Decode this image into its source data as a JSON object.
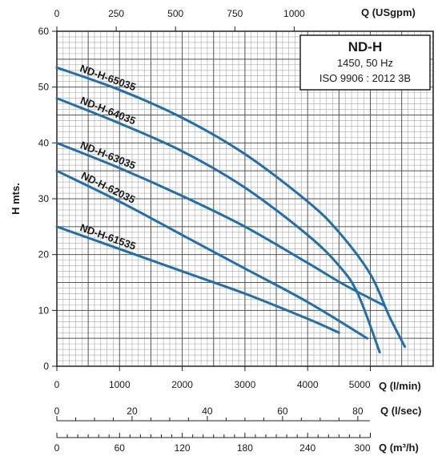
{
  "chart_data": {
    "type": "line",
    "title": "ND-H",
    "legend_box": {
      "title": "ND-H",
      "line1": "1450, 50 Hz",
      "line2": "ISO 9906 : 2012 3B"
    },
    "ylabel": "H mts.",
    "ylim": [
      0,
      60
    ],
    "y_ticks": [
      0,
      10,
      20,
      30,
      40,
      50,
      60
    ],
    "xlim": [
      0,
      5400
    ],
    "x_axis": {
      "unit": "Q (l/min)",
      "ticks": [
        0,
        1000,
        2000,
        3000,
        4000,
        5000
      ]
    },
    "top_axis": {
      "unit": "Q (USgpm)",
      "ticks": [
        0,
        250,
        500,
        750,
        1000
      ]
    },
    "extra_axes": [
      {
        "unit": "Q (l/sec)",
        "ticks": [
          0,
          20,
          40,
          60,
          80
        ]
      },
      {
        "unit": "Q (m³/h)",
        "ticks": [
          0,
          60,
          120,
          180,
          240,
          300
        ]
      }
    ],
    "grid": true,
    "series": [
      {
        "name": "ND-H-65035",
        "color": "#1f6fad",
        "points": [
          [
            0,
            53.5
          ],
          [
            1000,
            49.5
          ],
          [
            2000,
            44.5
          ],
          [
            3000,
            38.0
          ],
          [
            4000,
            29.5
          ],
          [
            4500,
            24.0
          ],
          [
            5000,
            16.5
          ],
          [
            5300,
            9.0
          ],
          [
            5550,
            3.5
          ]
        ]
      },
      {
        "name": "ND-H-64035",
        "color": "#1f6fad",
        "points": [
          [
            0,
            48.0
          ],
          [
            1000,
            43.5
          ],
          [
            2000,
            38.5
          ],
          [
            3000,
            32.0
          ],
          [
            4000,
            23.5
          ],
          [
            4500,
            18.0
          ],
          [
            4800,
            13.0
          ],
          [
            5150,
            2.5
          ]
        ]
      },
      {
        "name": "ND-H-63035",
        "color": "#1f6fad",
        "points": [
          [
            0,
            40.0
          ],
          [
            1000,
            35.5
          ],
          [
            2000,
            30.5
          ],
          [
            3000,
            25.0
          ],
          [
            4000,
            18.5
          ],
          [
            4600,
            14.5
          ],
          [
            5200,
            11.0
          ]
        ]
      },
      {
        "name": "ND-H-62035",
        "color": "#1f6fad",
        "points": [
          [
            0,
            35.0
          ],
          [
            1000,
            29.5
          ],
          [
            2000,
            23.5
          ],
          [
            3000,
            17.5
          ],
          [
            4000,
            11.5
          ],
          [
            4950,
            5.0
          ]
        ]
      },
      {
        "name": "ND-H-61535",
        "color": "#1f6fad",
        "points": [
          [
            0,
            25.0
          ],
          [
            1000,
            21.0
          ],
          [
            2000,
            17.0
          ],
          [
            3000,
            13.0
          ],
          [
            4000,
            8.5
          ],
          [
            4500,
            6.0
          ]
        ]
      }
    ]
  }
}
